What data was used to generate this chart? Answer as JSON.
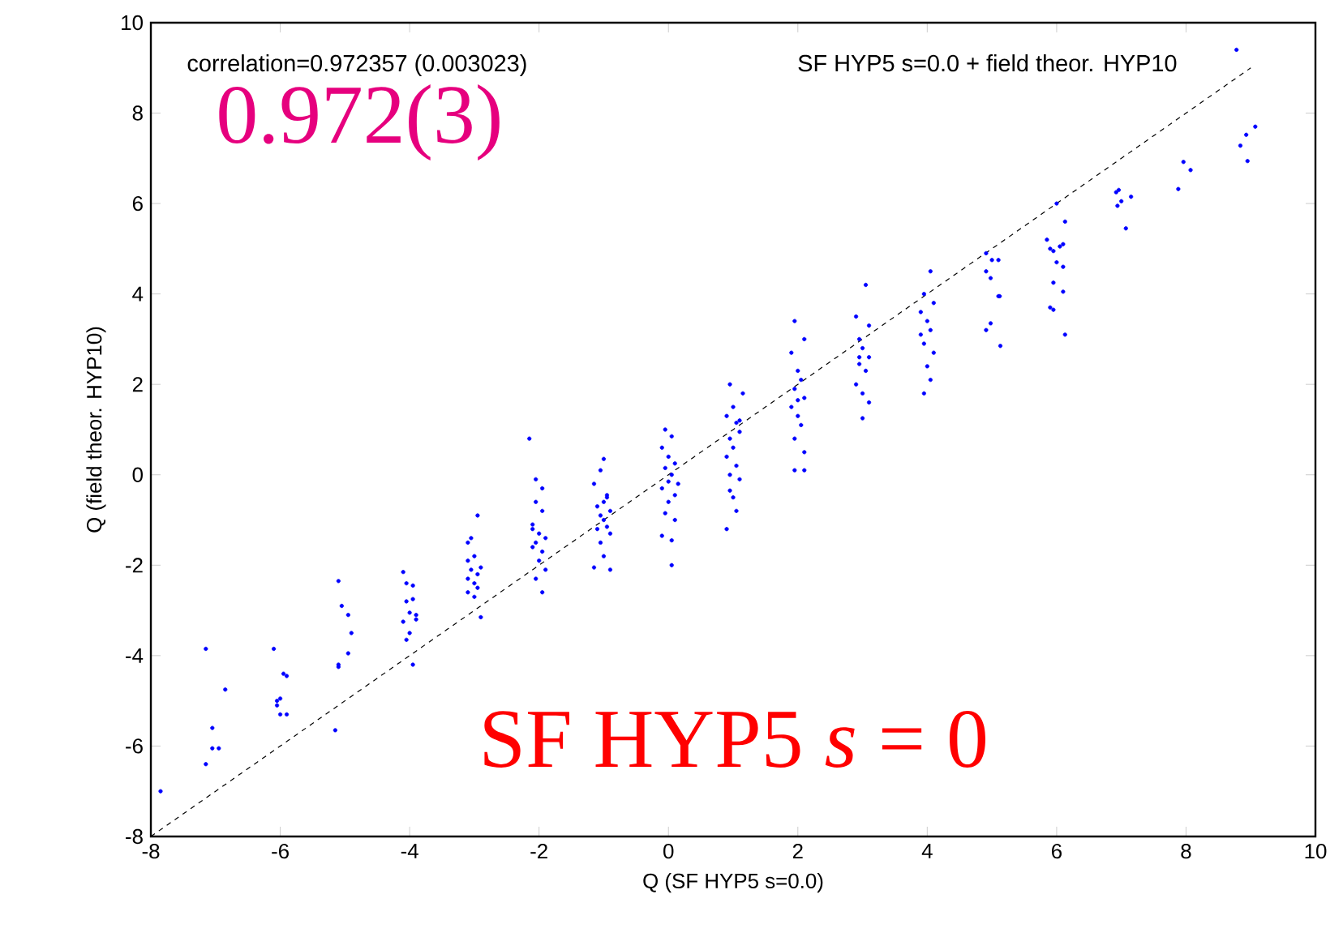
{
  "chart_data": {
    "type": "scatter",
    "xlabel": "Q (SF HYP5 s=0.0)",
    "ylabel": "Q (field theor. HYP10)",
    "annotations": [
      "correlation=0.972357 (0.003023)",
      "SF HYP5 s=0.0 + field theor. HYP10",
      "0.972(3)",
      "SF HYP5 *s* = 0"
    ],
    "xlim": [
      -8,
      10
    ],
    "ylim": [
      -8,
      10
    ],
    "xticks": [
      -8,
      -6,
      -4,
      -2,
      0,
      2,
      4,
      6,
      8,
      10
    ],
    "yticks": [
      -8,
      -6,
      -4,
      -2,
      0,
      2,
      4,
      6,
      8,
      10
    ],
    "series": [
      {
        "color": "#0000ff",
        "marker": "circle",
        "x": [
          -7.85,
          -7.15,
          -7.15,
          -7.05,
          -7.05,
          -6.95,
          -6.85,
          -6.1,
          -6.05,
          -6.05,
          -5.95,
          -5.9,
          -6.0,
          -6.0,
          -5.9,
          -5.1,
          -5.05,
          -4.95,
          -4.9,
          -4.95,
          -5.1,
          -5.15,
          -5.1,
          -4.1,
          -4.05,
          -3.95,
          -4.05,
          -3.95,
          -4.0,
          -4.1,
          -3.9,
          -4.0,
          -4.05,
          -3.95,
          -3.9,
          -2.95,
          -3.1,
          -3.05,
          -3.1,
          -3.0,
          -2.9,
          -3.05,
          -3.1,
          -2.95,
          -3.0,
          -3.1,
          -2.9,
          -3.0,
          -2.95,
          -2.15,
          -2.05,
          -1.95,
          -2.05,
          -1.95,
          -2.1,
          -2.0,
          -1.9,
          -2.05,
          -2.1,
          -1.95,
          -2.0,
          -1.9,
          -2.05,
          -1.95,
          -2.1,
          -1.0,
          -1.05,
          -1.15,
          -0.95,
          -1.0,
          -1.1,
          -0.9,
          -1.05,
          -1.0,
          -0.95,
          -1.1,
          -0.9,
          -1.05,
          -1.0,
          -1.15,
          -0.9,
          -0.95,
          -0.05,
          0.05,
          -0.1,
          0.0,
          0.1,
          -0.05,
          0.05,
          0.0,
          -0.1,
          0.1,
          0.0,
          -0.05,
          0.1,
          0.05,
          -0.1,
          0.05,
          0.15,
          0.95,
          1.15,
          1.0,
          0.9,
          1.05,
          1.1,
          0.95,
          1.0,
          0.9,
          1.05,
          1.1,
          0.95,
          1.0,
          1.05,
          0.9,
          0.95,
          1.1,
          1.95,
          2.1,
          1.9,
          2.0,
          2.05,
          1.95,
          2.1,
          1.9,
          2.0,
          2.05,
          1.95,
          2.1,
          1.95,
          2.1,
          2.0,
          2.9,
          3.05,
          3.1,
          2.95,
          3.0,
          3.1,
          2.95,
          3.05,
          2.9,
          3.0,
          3.1,
          3.0,
          2.95,
          4.05,
          3.95,
          4.1,
          3.9,
          4.0,
          4.05,
          3.95,
          4.1,
          4.0,
          4.05,
          3.95,
          3.9,
          4.91,
          5.0,
          4.91,
          4.98,
          5.1,
          5.12,
          4.91,
          4.98,
          5.13,
          5.1,
          5.85,
          5.9,
          5.95,
          6.0,
          6.05,
          6.1,
          6.1,
          5.95,
          5.9,
          5.95,
          6.1,
          6.13,
          6.13,
          6.0,
          6.92,
          6.96,
          6.94,
          7.0,
          7.15,
          7.07,
          7.88,
          7.96,
          8.07,
          8.78,
          8.84,
          8.93,
          9.07,
          8.95
        ],
        "values": [
          -7.0,
          -3.85,
          -6.4,
          -5.6,
          -6.05,
          -6.05,
          -4.75,
          -3.85,
          -5.0,
          -5.1,
          -4.4,
          -4.45,
          -4.95,
          -5.3,
          -5.3,
          -2.35,
          -2.9,
          -3.1,
          -3.5,
          -3.95,
          -4.2,
          -5.65,
          -4.25,
          -2.15,
          -2.4,
          -2.45,
          -2.8,
          -2.75,
          -3.05,
          -3.25,
          -3.2,
          -3.5,
          -3.65,
          -4.2,
          -3.1,
          -0.9,
          -1.5,
          -1.4,
          -1.9,
          -1.8,
          -2.05,
          -2.1,
          -2.3,
          -2.5,
          -2.4,
          -2.6,
          -3.15,
          -2.7,
          -2.2,
          0.8,
          -0.1,
          -0.3,
          -0.6,
          -0.8,
          -1.1,
          -1.3,
          -1.4,
          -1.5,
          -1.6,
          -1.7,
          -1.9,
          -2.1,
          -2.3,
          -2.6,
          -1.2,
          0.35,
          0.1,
          -0.2,
          -0.45,
          -0.6,
          -0.7,
          -0.8,
          -0.9,
          -1.0,
          -1.15,
          -1.2,
          -1.3,
          -1.5,
          -1.8,
          -2.05,
          -2.1,
          -0.5,
          1.0,
          0.85,
          0.6,
          0.4,
          0.25,
          0.15,
          0.0,
          -0.15,
          -0.3,
          -0.45,
          -0.6,
          -0.85,
          -1.0,
          -1.45,
          -1.35,
          -2.0,
          -0.2,
          2.0,
          1.8,
          1.5,
          1.3,
          1.15,
          0.95,
          0.8,
          0.6,
          0.4,
          0.2,
          -0.1,
          -0.35,
          -0.5,
          -0.8,
          -1.2,
          0.0,
          1.2,
          3.4,
          3.0,
          2.7,
          2.3,
          2.1,
          1.9,
          1.7,
          1.5,
          1.3,
          1.1,
          0.8,
          0.5,
          0.1,
          0.1,
          1.65,
          3.5,
          4.2,
          3.3,
          3.0,
          2.8,
          2.6,
          2.45,
          2.3,
          2.0,
          1.8,
          1.6,
          1.25,
          2.6,
          4.5,
          4.0,
          3.8,
          3.6,
          3.4,
          3.2,
          2.9,
          2.7,
          2.4,
          2.1,
          1.8,
          3.1,
          4.9,
          4.75,
          4.5,
          4.35,
          3.95,
          3.95,
          3.2,
          3.35,
          2.85,
          4.75,
          5.2,
          5.0,
          4.95,
          4.7,
          5.05,
          5.1,
          4.6,
          4.25,
          3.7,
          3.65,
          4.05,
          3.1,
          5.6,
          6.0,
          6.25,
          6.3,
          5.95,
          6.05,
          6.15,
          5.45,
          6.32,
          6.92,
          6.74,
          9.4,
          7.28,
          7.52,
          7.7,
          6.94
        ]
      },
      {
        "type": "line",
        "color": "#000000",
        "marker": "none",
        "line_style": "dashed",
        "x": [
          -8,
          9
        ],
        "values": [
          -8,
          9
        ]
      }
    ]
  }
}
